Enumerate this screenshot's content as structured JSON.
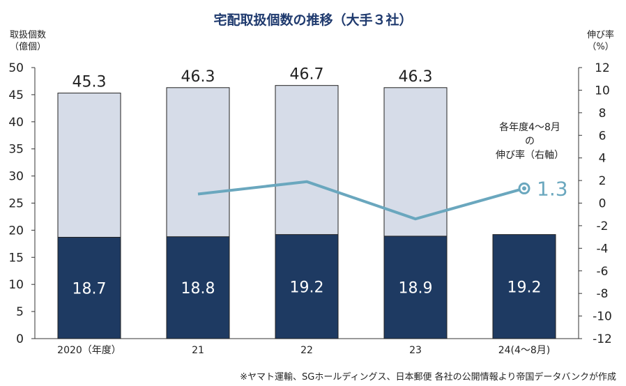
{
  "chart_data": {
    "type": "bar",
    "title": "宅配取扱個数の推移（大手３社）",
    "ylabel_left": [
      "取扱個数",
      "（億個）"
    ],
    "ylabel_right": [
      "伸び率",
      "（%）"
    ],
    "ylim_left": [
      0,
      50
    ],
    "yticks_left": [
      "0",
      "5",
      "10",
      "15",
      "20",
      "25",
      "30",
      "35",
      "40",
      "45",
      "50"
    ],
    "ylim_right": [
      -12,
      12
    ],
    "yticks_right": [
      "-12",
      "-10",
      "-8",
      "-6",
      "-4",
      "-2",
      "0",
      "2",
      "4",
      "6",
      "8",
      "10",
      "12"
    ],
    "categories": [
      "2020（年度）",
      "21",
      "22",
      "23",
      "24(4～8月)"
    ],
    "series": [
      {
        "name": "annual-total",
        "values": [
          45.3,
          46.3,
          46.7,
          46.3,
          null
        ],
        "labels": [
          "45.3",
          "46.3",
          "46.7",
          "46.3",
          ""
        ],
        "color": "#d6dce8"
      },
      {
        "name": "april-august",
        "values": [
          18.7,
          18.8,
          19.2,
          18.9,
          19.2
        ],
        "labels": [
          "18.7",
          "18.8",
          "19.2",
          "18.9",
          "19.2"
        ],
        "color": "#1e3a62"
      },
      {
        "name": "growth-rate",
        "axis": "right",
        "type": "line",
        "values": [
          null,
          0.8,
          1.9,
          -1.4,
          1.3
        ],
        "color": "#6aa7be"
      }
    ],
    "annotation_lines": [
      "各年度4～8月",
      "の",
      "伸び率（右軸）"
    ],
    "callout_value": "1.3"
  },
  "source": "※ヤマト運輸、SGホールディングス、日本郵便 各社の公開情報より帝国データバンクが作成"
}
